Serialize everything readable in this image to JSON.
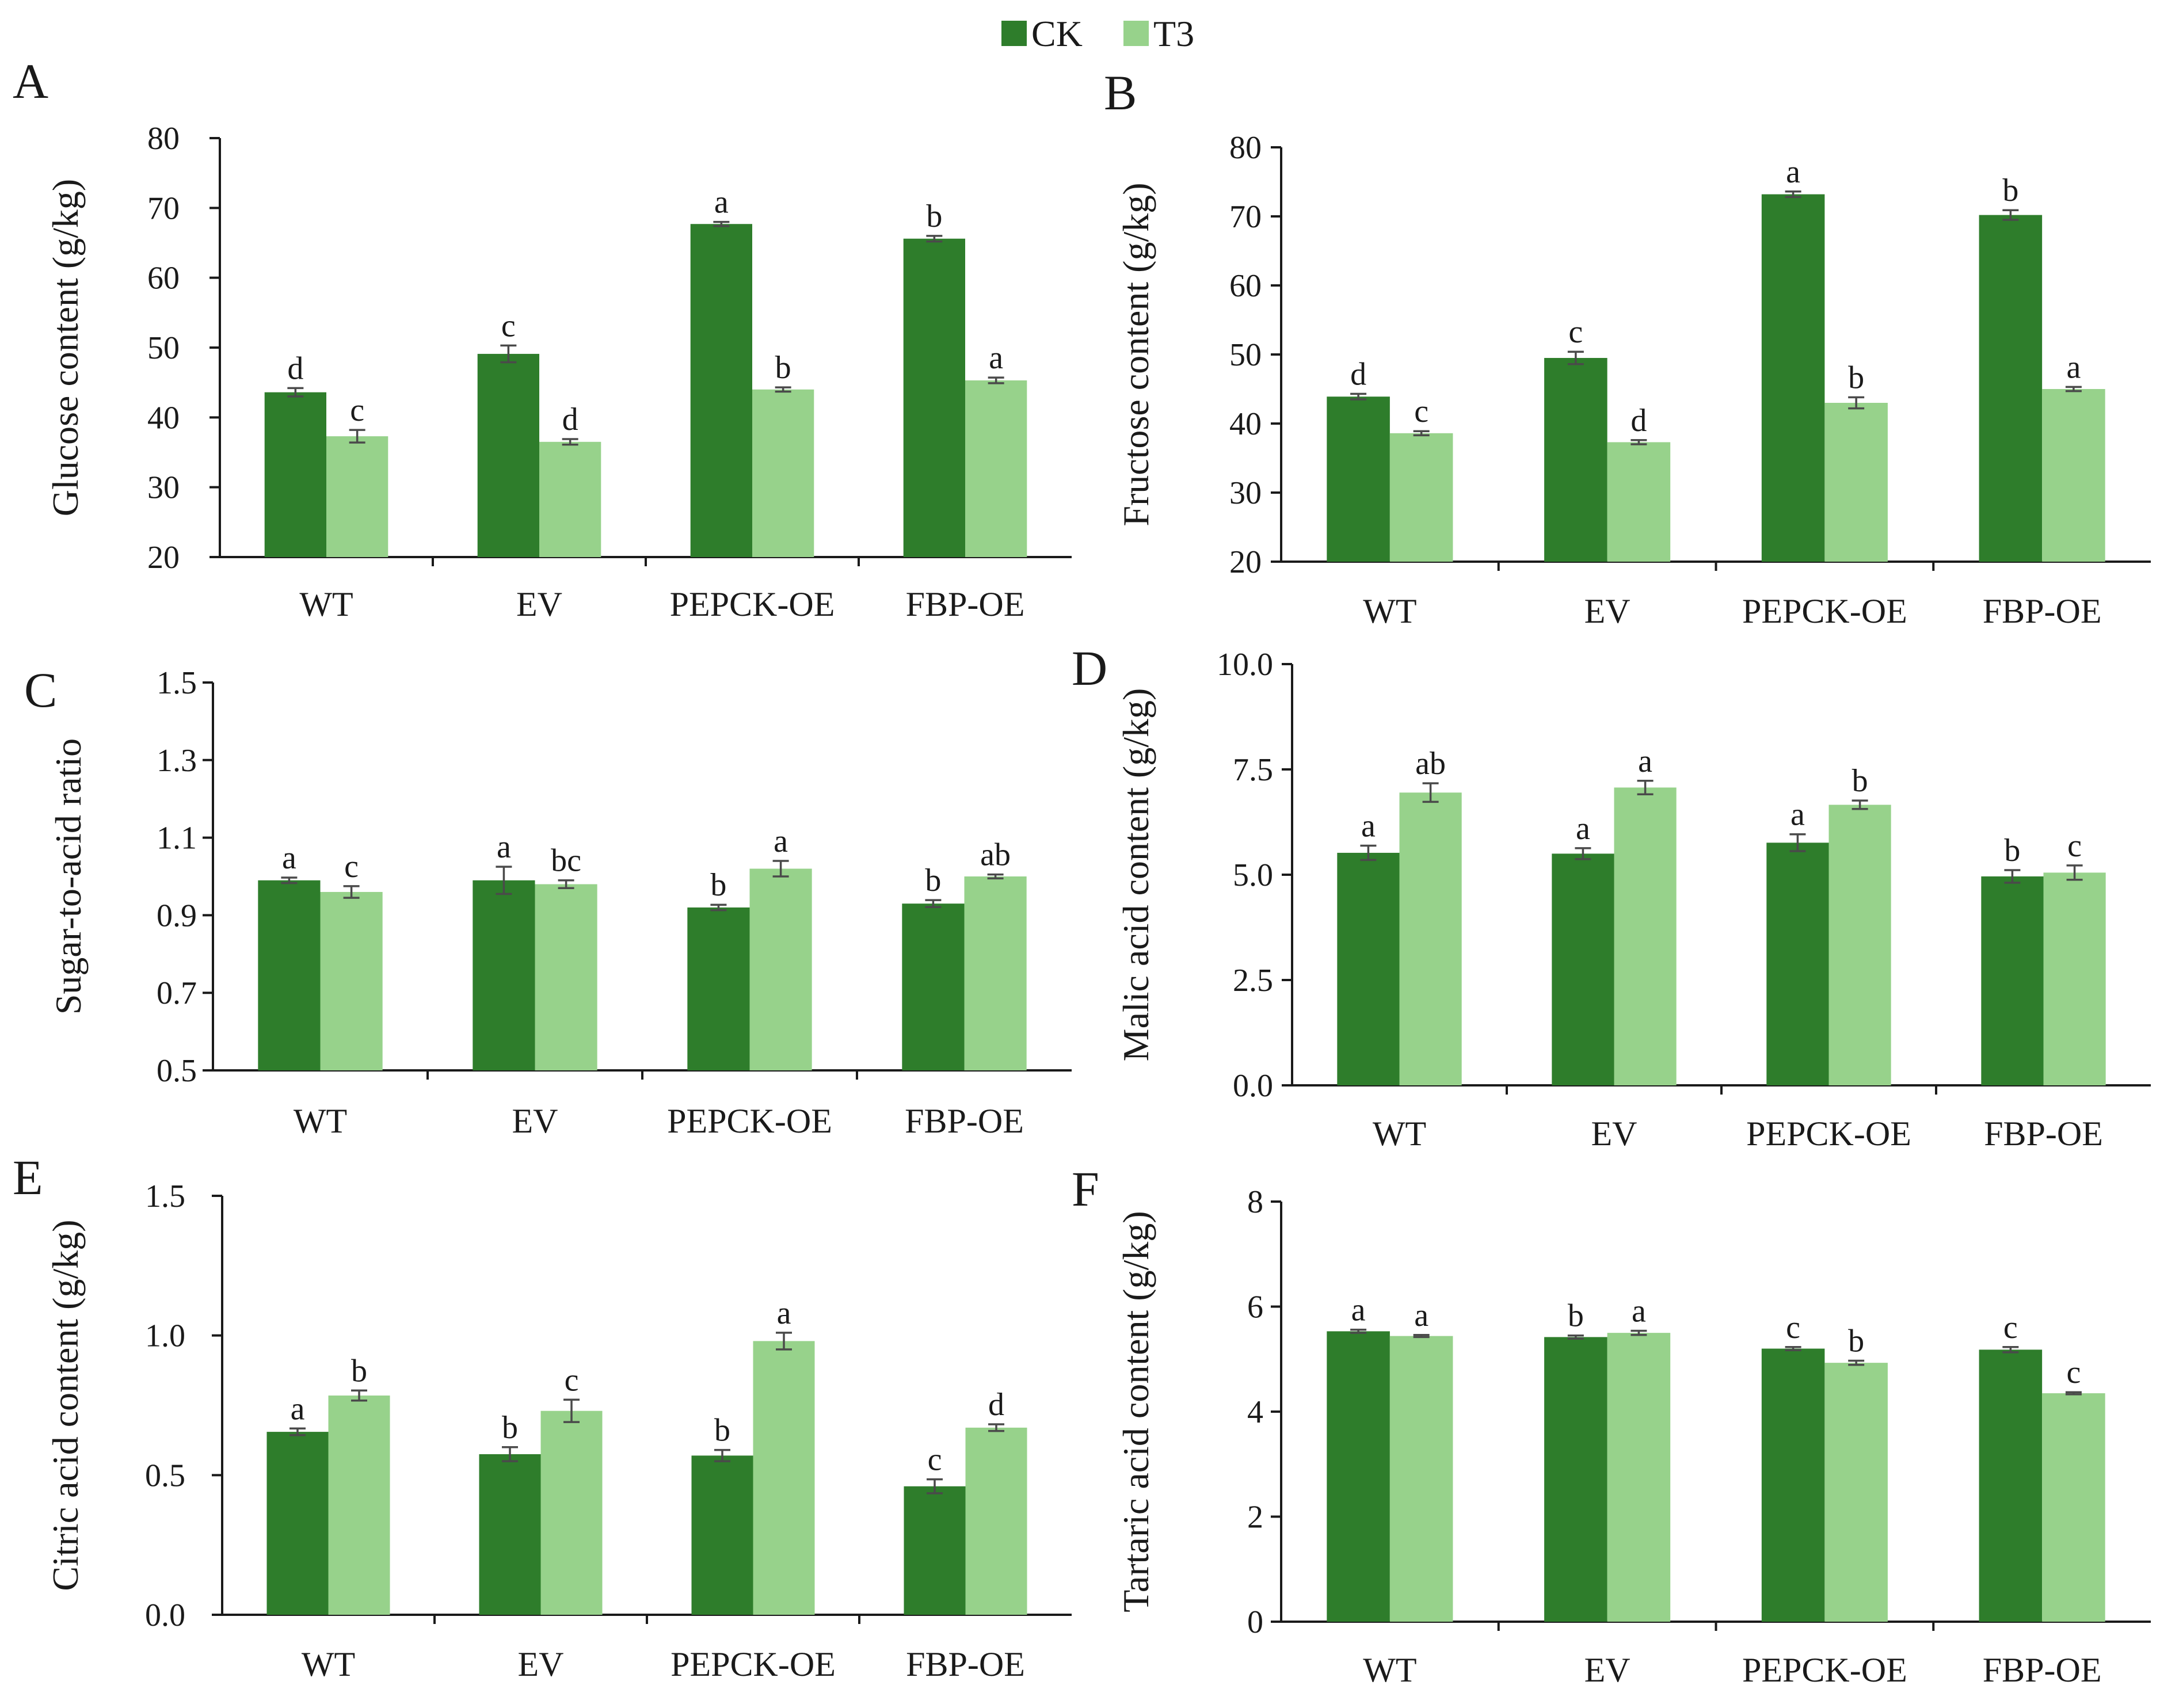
{
  "colors": {
    "CK": "#2e7d2b",
    "T3": "#97d28b",
    "axis": "#1a1a1a",
    "error": "#4a4a4a"
  },
  "legend": [
    {
      "name": "CK",
      "color": "#2e7d2b"
    },
    {
      "name": "T3",
      "color": "#97d28b"
    }
  ],
  "chart_data": [
    {
      "type": "bar",
      "panel": "A",
      "ylabel": "Glucose content (g/kg)",
      "ylim": [
        20,
        80
      ],
      "yticks": [
        20,
        30,
        40,
        50,
        60,
        70,
        80
      ],
      "categories": [
        "WT",
        "EV",
        "PEPCK-OE",
        "FBP-OE"
      ],
      "series": [
        {
          "name": "CK",
          "values": [
            43.6,
            49.1,
            67.7,
            65.6
          ],
          "errors": [
            0.6,
            1.2,
            0.3,
            0.4
          ],
          "labels": [
            "d",
            "c",
            "a",
            "b"
          ]
        },
        {
          "name": "T3",
          "values": [
            37.3,
            36.5,
            44.0,
            45.3
          ],
          "errors": [
            0.9,
            0.4,
            0.3,
            0.4
          ],
          "labels": [
            "c",
            "d",
            "b",
            "a"
          ]
        }
      ]
    },
    {
      "type": "bar",
      "panel": "B",
      "ylabel": "Fructose content (g/kg)",
      "ylim": [
        20,
        80
      ],
      "yticks": [
        20,
        30,
        40,
        50,
        60,
        70,
        80
      ],
      "categories": [
        "WT",
        "EV",
        "PEPCK-OE",
        "FBP-OE"
      ],
      "series": [
        {
          "name": "CK",
          "values": [
            43.9,
            49.5,
            73.2,
            70.2
          ],
          "errors": [
            0.4,
            0.9,
            0.4,
            0.7
          ],
          "labels": [
            "d",
            "c",
            "a",
            "b"
          ]
        },
        {
          "name": "T3",
          "values": [
            38.6,
            37.3,
            43.0,
            45.0
          ],
          "errors": [
            0.3,
            0.3,
            0.8,
            0.3
          ],
          "labels": [
            "c",
            "d",
            "b",
            "a"
          ]
        }
      ]
    },
    {
      "type": "bar",
      "panel": "C",
      "ylabel": "Sugar-to-acid ratio",
      "ylim": [
        0.5,
        1.5
      ],
      "yticks": [
        0.5,
        0.7,
        0.9,
        1.1,
        1.3,
        1.5
      ],
      "categories": [
        "WT",
        "EV",
        "PEPCK-OE",
        "FBP-OE"
      ],
      "series": [
        {
          "name": "CK",
          "values": [
            0.99,
            0.99,
            0.92,
            0.93
          ],
          "errors": [
            0.007,
            0.035,
            0.007,
            0.009
          ],
          "labels": [
            "a",
            "a",
            "b",
            "b"
          ]
        },
        {
          "name": "T3",
          "values": [
            0.96,
            0.98,
            1.02,
            1.0
          ],
          "errors": [
            0.015,
            0.01,
            0.02,
            0.005
          ],
          "labels": [
            "c",
            "bc",
            "a",
            "ab"
          ]
        }
      ]
    },
    {
      "type": "bar",
      "panel": "D",
      "ylabel": "Malic acid content (g/kg)",
      "ylim": [
        0,
        10
      ],
      "yticks": [
        0.0,
        2.5,
        5.0,
        7.5,
        10.0
      ],
      "categories": [
        "WT",
        "EV",
        "PEPCK-OE",
        "FBP-OE"
      ],
      "series": [
        {
          "name": "CK",
          "values": [
            5.52,
            5.5,
            5.76,
            4.96
          ],
          "errors": [
            0.17,
            0.13,
            0.2,
            0.15
          ],
          "labels": [
            "a",
            "a",
            "a",
            "b"
          ]
        },
        {
          "name": "T3",
          "values": [
            6.95,
            7.07,
            6.66,
            5.05
          ],
          "errors": [
            0.22,
            0.16,
            0.1,
            0.17
          ],
          "labels": [
            "ab",
            "a",
            "b",
            "c"
          ]
        }
      ]
    },
    {
      "type": "bar",
      "panel": "E",
      "ylabel": "Citric acid content (g/kg)",
      "ylim": [
        0,
        1.5
      ],
      "yticks": [
        0.0,
        0.5,
        1.0,
        1.5
      ],
      "categories": [
        "WT",
        "EV",
        "PEPCK-OE",
        "FBP-OE"
      ],
      "series": [
        {
          "name": "CK",
          "values": [
            0.655,
            0.575,
            0.57,
            0.46
          ],
          "errors": [
            0.012,
            0.025,
            0.02,
            0.025
          ],
          "labels": [
            "a",
            "b",
            "b",
            "c"
          ]
        },
        {
          "name": "T3",
          "values": [
            0.785,
            0.73,
            0.98,
            0.67
          ],
          "errors": [
            0.018,
            0.04,
            0.03,
            0.012
          ],
          "labels": [
            "b",
            "c",
            "a",
            "d"
          ]
        }
      ]
    },
    {
      "type": "bar",
      "panel": "F",
      "ylabel": "Tartaric acid content (g/kg)",
      "ylim": [
        0,
        8
      ],
      "yticks": [
        0,
        2,
        4,
        6,
        8
      ],
      "categories": [
        "WT",
        "EV",
        "PEPCK-OE",
        "FBP-OE"
      ],
      "series": [
        {
          "name": "CK",
          "values": [
            5.53,
            5.42,
            5.2,
            5.18
          ],
          "errors": [
            0.03,
            0.03,
            0.03,
            0.05
          ],
          "labels": [
            "a",
            "b",
            "c",
            "c"
          ]
        },
        {
          "name": "T3",
          "values": [
            5.44,
            5.5,
            4.93,
            4.35
          ],
          "errors": [
            0.02,
            0.04,
            0.04,
            0.02
          ],
          "labels": [
            "a",
            "a",
            "b",
            "c"
          ]
        }
      ]
    }
  ]
}
